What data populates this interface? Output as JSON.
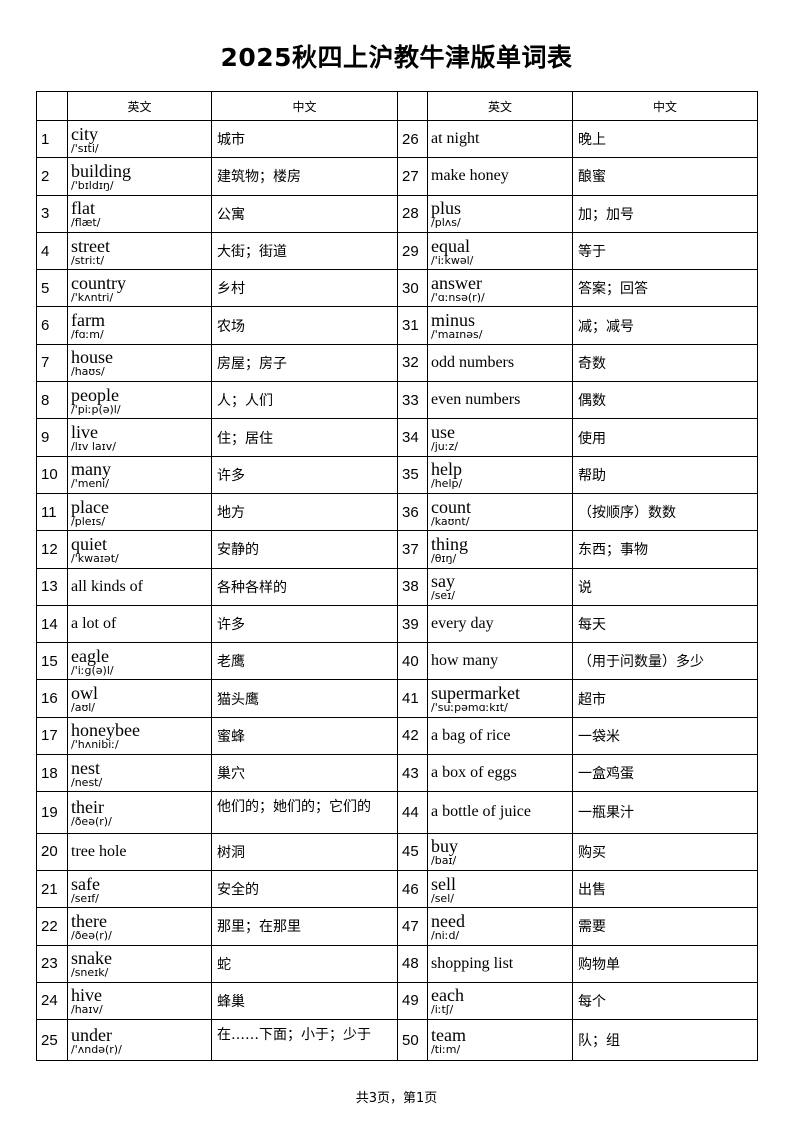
{
  "title": "2025秋四上沪教牛津版单词表",
  "headers": {
    "en": "英文",
    "cn": "中文"
  },
  "words": [
    {
      "n": "1",
      "en": "city",
      "ph": "/'sɪti/",
      "cn": "城市"
    },
    {
      "n": "2",
      "en": "building",
      "ph": "/'bɪldɪŋ/",
      "cn": "建筑物；楼房"
    },
    {
      "n": "3",
      "en": "flat",
      "ph": "/flæt/",
      "cn": "公寓"
    },
    {
      "n": "4",
      "en": "street",
      "ph": "/striːt/",
      "cn": "大街；街道"
    },
    {
      "n": "5",
      "en": "country",
      "ph": "/'kʌntri/",
      "cn": "乡村"
    },
    {
      "n": "6",
      "en": "farm",
      "ph": "/fɑːm/",
      "cn": "农场"
    },
    {
      "n": "7",
      "en": "house",
      "ph": "/haʊs/",
      "cn": "房屋；房子"
    },
    {
      "n": "8",
      "en": "people",
      "ph": "/'piːp(ə)l/",
      "cn": "人；人们"
    },
    {
      "n": "9",
      "en": "live",
      "ph": "/lɪv laɪv/",
      "cn": "住；居住"
    },
    {
      "n": "10",
      "en": "many",
      "ph": "/'meni/",
      "cn": "许多"
    },
    {
      "n": "11",
      "en": "place",
      "ph": "/pleɪs/",
      "cn": "地方"
    },
    {
      "n": "12",
      "en": "quiet",
      "ph": "/'kwaɪət/",
      "cn": "安静的"
    },
    {
      "n": "13",
      "en": "all kinds of",
      "ph": "",
      "cn": "各种各样的"
    },
    {
      "n": "14",
      "en": "a lot of",
      "ph": "",
      "cn": "许多"
    },
    {
      "n": "15",
      "en": "eagle",
      "ph": "/'iːg(ə)l/",
      "cn": "老鹰"
    },
    {
      "n": "16",
      "en": "owl",
      "ph": "/aʊl/",
      "cn": "猫头鹰"
    },
    {
      "n": "17",
      "en": "honeybee",
      "ph": "/'hʌnibiː/",
      "cn": "蜜蜂"
    },
    {
      "n": "18",
      "en": "nest",
      "ph": "/nest/",
      "cn": "巢穴"
    },
    {
      "n": "19",
      "en": "their",
      "ph": "/ðeə(r)/",
      "cn": "他们的；她们的；它们的"
    },
    {
      "n": "20",
      "en": "tree hole",
      "ph": "",
      "cn": "树洞"
    },
    {
      "n": "21",
      "en": "safe",
      "ph": "/seɪf/",
      "cn": "安全的"
    },
    {
      "n": "22",
      "en": "there",
      "ph": "/ðeə(r)/",
      "cn": "那里；在那里"
    },
    {
      "n": "23",
      "en": "snake",
      "ph": "/sneɪk/",
      "cn": "蛇"
    },
    {
      "n": "24",
      "en": "hive",
      "ph": "/haɪv/",
      "cn": "蜂巢"
    },
    {
      "n": "25",
      "en": "under",
      "ph": "/'ʌndə(r)/",
      "cn": "在……下面；小于；少于"
    },
    {
      "n": "26",
      "en": "at night",
      "ph": "",
      "cn": "晚上"
    },
    {
      "n": "27",
      "en": "make honey",
      "ph": "",
      "cn": "酿蜜"
    },
    {
      "n": "28",
      "en": "plus",
      "ph": "/plʌs/",
      "cn": "加；加号"
    },
    {
      "n": "29",
      "en": "equal",
      "ph": "/'iːkwəl/",
      "cn": "等于"
    },
    {
      "n": "30",
      "en": "answer",
      "ph": "/'ɑːnsə(r)/",
      "cn": "答案；回答"
    },
    {
      "n": "31",
      "en": "minus",
      "ph": "/'maɪnəs/",
      "cn": "减；减号"
    },
    {
      "n": "32",
      "en": "odd numbers",
      "ph": "",
      "cn": "奇数"
    },
    {
      "n": "33",
      "en": "even numbers",
      "ph": "",
      "cn": "偶数"
    },
    {
      "n": "34",
      "en": "use",
      "ph": "/juːz/",
      "cn": "使用"
    },
    {
      "n": "35",
      "en": "help",
      "ph": "/help/",
      "cn": "帮助"
    },
    {
      "n": "36",
      "en": "count",
      "ph": "/kaʊnt/",
      "cn": "（按顺序）数数"
    },
    {
      "n": "37",
      "en": "thing",
      "ph": "/θɪŋ/",
      "cn": "东西；事物"
    },
    {
      "n": "38",
      "en": "say",
      "ph": "/seɪ/",
      "cn": "说"
    },
    {
      "n": "39",
      "en": "every day",
      "ph": "",
      "cn": "每天"
    },
    {
      "n": "40",
      "en": "how many",
      "ph": "",
      "cn": "（用于问数量）多少"
    },
    {
      "n": "41",
      "en": "supermarket",
      "ph": "/'suːpəmɑːkɪt/",
      "cn": "超市"
    },
    {
      "n": "42",
      "en": "a bag of rice",
      "ph": "",
      "cn": "一袋米"
    },
    {
      "n": "43",
      "en": "a box of eggs",
      "ph": "",
      "cn": "一盒鸡蛋"
    },
    {
      "n": "44",
      "en": "a bottle of juice",
      "ph": "",
      "cn": "一瓶果汁"
    },
    {
      "n": "45",
      "en": "buy",
      "ph": "/baɪ/",
      "cn": "购买"
    },
    {
      "n": "46",
      "en": "sell",
      "ph": "/sel/",
      "cn": "出售"
    },
    {
      "n": "47",
      "en": "need",
      "ph": "/niːd/",
      "cn": "需要"
    },
    {
      "n": "48",
      "en": "shopping list",
      "ph": "",
      "cn": "购物单"
    },
    {
      "n": "49",
      "en": "each",
      "ph": "/iːtʃ/",
      "cn": "每个"
    },
    {
      "n": "50",
      "en": "team",
      "ph": "/tiːm/",
      "cn": "队；组"
    }
  ],
  "footer": "共3页，第1页"
}
